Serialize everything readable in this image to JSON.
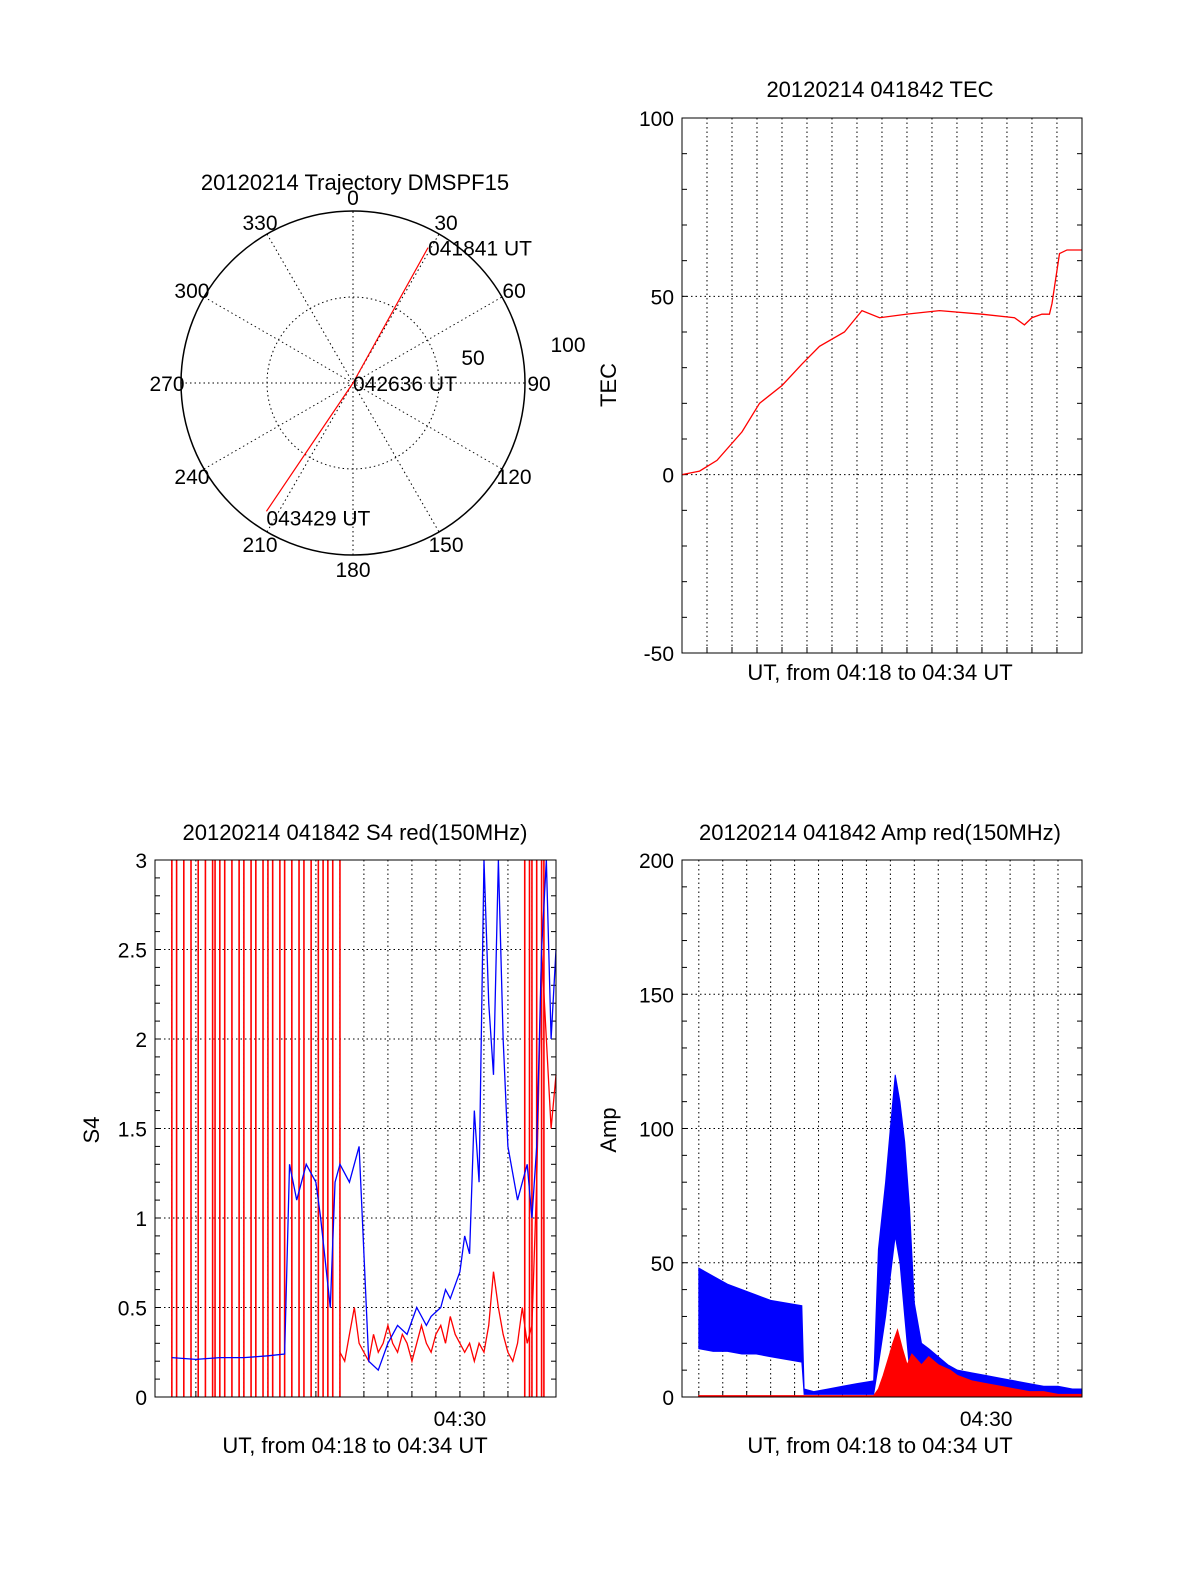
{
  "chart_data": [
    {
      "type": "polar",
      "title": "20120214 Trajectory DMSPF15",
      "angle_ticks": [
        "0",
        "30",
        "60",
        "90",
        "120",
        "150",
        "180",
        "210",
        "240",
        "270",
        "300",
        "330"
      ],
      "radius_ticks": [
        "50",
        "100"
      ],
      "rmax": 100,
      "track": [
        {
          "azimuth": 29,
          "zenith": 90,
          "label": "041841 UT"
        },
        {
          "azimuth": 0,
          "zenith": 0,
          "label": "042636 UT"
        },
        {
          "azimuth": 214,
          "zenith": 90,
          "label": "043429 UT"
        }
      ],
      "track_color": "#ff0000"
    },
    {
      "type": "line",
      "title": "20120214 041842 TEC",
      "xlabel": "UT, from 04:18 to 04:34 UT",
      "ylabel": "TEC",
      "xlim": [
        4.3,
        4.5667
      ],
      "ylim": [
        -50,
        100
      ],
      "yticks": [
        "-50",
        "0",
        "50",
        "100"
      ],
      "series": [
        {
          "color": "#ff0000",
          "x": [
            4.3,
            4.3117,
            4.3233,
            4.34,
            4.3517,
            4.3667,
            4.38,
            4.3917,
            4.4083,
            4.42,
            4.4317,
            4.45,
            4.4717,
            4.5,
            4.5217,
            4.5283,
            4.5333,
            4.54,
            4.545,
            4.5467,
            4.5517,
            4.5567,
            4.5667
          ],
          "y": [
            0,
            1,
            4,
            12,
            20,
            25,
            31,
            36,
            40,
            46,
            44,
            45,
            46,
            45,
            44,
            42,
            44,
            45,
            45,
            48,
            62,
            63,
            63
          ]
        }
      ]
    },
    {
      "type": "line",
      "title": "20120214 041842 S4 red(150MHz)",
      "xlabel": "UT, from 04:18 to 04:34 UT",
      "ylabel": "S4",
      "xlim": [
        4.2883,
        4.5667
      ],
      "ylim": [
        0,
        3
      ],
      "yticks": [
        "0",
        "0.5",
        "1",
        "1.5",
        "2",
        "2.5",
        "3"
      ],
      "xticks": [
        "04:30"
      ],
      "series": [
        {
          "color": "#ff0000",
          "label": "red spikes",
          "x": [
            4.3,
            4.3033,
            4.3083,
            4.3133,
            4.3183,
            4.3233,
            4.3283,
            4.33,
            4.3333,
            4.3367,
            4.3417,
            4.3467,
            4.35,
            4.355,
            4.3583,
            4.3633,
            4.3667,
            4.37,
            4.375,
            4.3783,
            4.3833,
            4.3883,
            4.3917,
            4.3967,
            4.4017,
            4.405,
            4.4083,
            4.4117,
            4.4167,
            4.545,
            4.5483,
            4.55,
            4.5533,
            4.5567,
            4.5583
          ],
          "y": [
            3,
            3,
            3,
            3,
            3,
            3,
            3,
            3,
            3,
            3,
            3,
            3,
            3,
            3,
            3,
            3,
            3,
            3,
            3,
            3,
            3,
            3,
            3,
            3,
            3,
            3,
            3,
            3,
            3,
            3,
            3,
            3,
            3,
            3,
            3
          ]
        },
        {
          "color": "#ff0000",
          "label": "red",
          "x": [
            4.4167,
            4.42,
            4.4233,
            4.4267,
            4.43,
            4.4333,
            4.4367,
            4.44,
            4.4433,
            4.4467,
            4.45,
            4.4533,
            4.4567,
            4.46,
            4.4633,
            4.4667,
            4.47,
            4.4733,
            4.4767,
            4.48,
            4.4833,
            4.4867,
            4.49,
            4.4933,
            4.4967,
            4.5,
            4.5033,
            4.5067,
            4.51,
            4.5133,
            4.5167,
            4.52,
            4.5233,
            4.5267,
            4.53,
            4.5333,
            4.5367,
            4.54,
            4.5433,
            4.5467,
            4.55,
            4.5533,
            4.5567,
            4.56,
            4.5633,
            4.5667
          ],
          "y": [
            0.25,
            0.2,
            0.35,
            0.5,
            0.3,
            0.25,
            0.2,
            0.35,
            0.25,
            0.3,
            0.4,
            0.3,
            0.25,
            0.35,
            0.3,
            0.2,
            0.3,
            0.4,
            0.3,
            0.25,
            0.35,
            0.4,
            0.3,
            0.45,
            0.35,
            0.3,
            0.25,
            0.3,
            0.2,
            0.3,
            0.25,
            0.4,
            0.7,
            0.5,
            0.35,
            0.25,
            0.2,
            0.3,
            0.5,
            0.3,
            0.4,
            1.2,
            2.5,
            2.0,
            1.5,
            1.8
          ]
        },
        {
          "color": "#0000ff",
          "label": "blue",
          "x": [
            4.3,
            4.3167,
            4.3333,
            4.35,
            4.3667,
            4.3783,
            4.3817,
            4.3867,
            4.3933,
            4.4,
            4.4033,
            4.41,
            4.4133,
            4.4167,
            4.4233,
            4.43,
            4.4367,
            4.4433,
            4.45,
            4.4567,
            4.4633,
            4.47,
            4.4767,
            4.48,
            4.4867,
            4.49,
            4.4933,
            4.5,
            4.5033,
            4.5067,
            4.51,
            4.5133,
            4.5167,
            4.52,
            4.5233,
            4.5267,
            4.53,
            4.5333,
            4.54,
            4.5467,
            4.55,
            4.5533,
            4.5567,
            4.56,
            4.5633,
            4.5667
          ],
          "y": [
            0.22,
            0.21,
            0.22,
            0.22,
            0.23,
            0.24,
            1.3,
            1.1,
            1.3,
            1.2,
            1.0,
            0.5,
            1.2,
            1.3,
            1.2,
            1.4,
            0.2,
            0.15,
            0.3,
            0.4,
            0.35,
            0.5,
            0.4,
            0.45,
            0.5,
            0.6,
            0.55,
            0.7,
            0.9,
            0.8,
            1.6,
            1.2,
            3,
            2.2,
            1.8,
            3,
            2.0,
            1.4,
            1.1,
            1.3,
            1.0,
            1.4,
            2.5,
            3,
            2.0,
            2.5
          ]
        }
      ]
    },
    {
      "type": "line",
      "title": "20120214 041842 Amp red(150MHz)",
      "xlabel": "UT, from 04:18 to 04:34 UT",
      "ylabel": "Amp",
      "xlim": [
        4.2883,
        4.5667
      ],
      "ylim": [
        0,
        200
      ],
      "yticks": [
        "0",
        "50",
        "100",
        "150",
        "200"
      ],
      "xticks": [
        "04:30"
      ],
      "series": [
        {
          "color": "#0000ff",
          "label": "blue upper envelope",
          "x": [
            4.3,
            4.31,
            4.32,
            4.33,
            4.34,
            4.35,
            4.3717,
            4.3733,
            4.38,
            4.39,
            4.4,
            4.41,
            4.4217,
            4.425,
            4.43,
            4.4333,
            4.4367,
            4.44,
            4.4433,
            4.4467,
            4.45,
            4.455,
            4.46,
            4.4667,
            4.4733,
            4.48,
            4.49,
            4.5,
            4.51,
            4.52,
            4.53,
            4.54,
            4.55,
            4.56,
            4.5667
          ],
          "y": [
            48,
            45,
            42,
            40,
            38,
            36,
            34,
            3,
            2,
            3,
            4,
            5,
            6,
            55,
            80,
            100,
            120,
            110,
            95,
            70,
            35,
            20,
            18,
            15,
            12,
            10,
            9,
            8,
            7,
            6,
            5,
            4,
            4,
            3,
            3
          ]
        },
        {
          "color": "#0000ff",
          "label": "blue lower envelope",
          "x": [
            4.3,
            4.31,
            4.32,
            4.33,
            4.34,
            4.35,
            4.3717,
            4.3733,
            4.38,
            4.39,
            4.4,
            4.41,
            4.4217,
            4.425,
            4.43,
            4.4333,
            4.4367,
            4.44,
            4.4433,
            4.4467,
            4.45,
            4.455,
            4.46,
            4.4667,
            4.4733,
            4.48,
            4.49,
            4.5,
            4.51,
            4.52,
            4.53,
            4.54,
            4.55,
            4.56,
            4.5667
          ],
          "y": [
            18,
            17,
            17,
            16,
            16,
            15,
            13,
            1,
            1,
            1,
            1,
            1,
            1,
            12,
            30,
            45,
            60,
            50,
            30,
            10,
            3,
            2,
            2,
            1,
            1,
            1,
            1,
            1,
            1,
            1,
            1,
            1,
            1,
            1,
            1
          ]
        },
        {
          "color": "#ff0000",
          "label": "red",
          "x": [
            4.3,
            4.35,
            4.4,
            4.4217,
            4.425,
            4.4283,
            4.4317,
            4.435,
            4.4383,
            4.4417,
            4.445,
            4.4483,
            4.4517,
            4.455,
            4.46,
            4.4667,
            4.475,
            4.48,
            4.49,
            4.5,
            4.51,
            4.52,
            4.53,
            4.54,
            4.55,
            4.56,
            4.5667
          ],
          "y": [
            0.5,
            0.5,
            0.5,
            0.5,
            3,
            8,
            14,
            20,
            25,
            18,
            12,
            16,
            14,
            12,
            15,
            12,
            10,
            8,
            6,
            5,
            4,
            3,
            2,
            2,
            1,
            1,
            1
          ]
        }
      ]
    }
  ]
}
